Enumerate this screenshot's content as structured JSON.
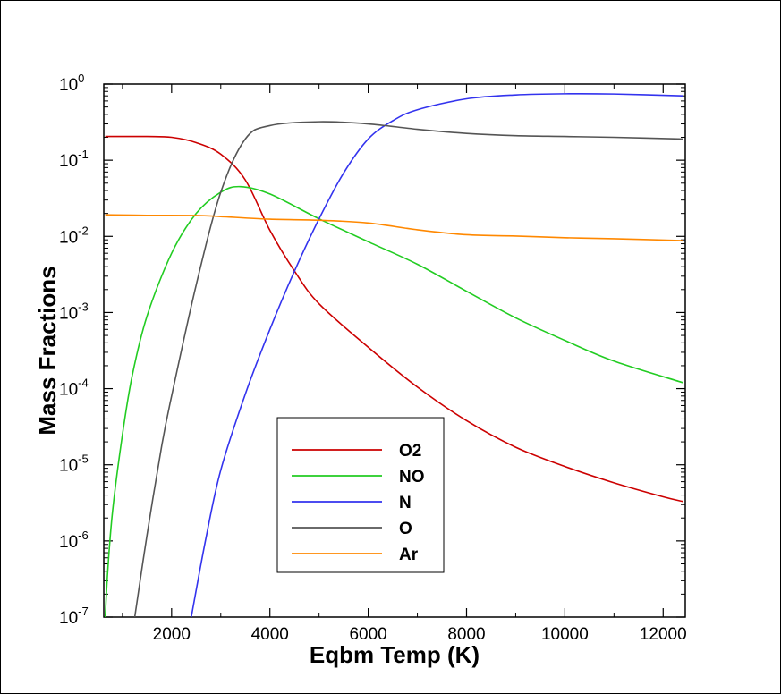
{
  "chart_data": {
    "type": "line",
    "xlabel": "Eqbm Temp (K)",
    "ylabel": "Mass Fractions",
    "xlim": [
      620,
      12450
    ],
    "ylim_log10": [
      -7,
      0
    ],
    "yscale": "log",
    "x_ticks": [
      2000,
      4000,
      6000,
      8000,
      10000,
      12000
    ],
    "x_tick_labels": [
      "2000",
      "4000",
      "6000",
      "8000",
      "10000",
      "12000"
    ],
    "y_ticks": [
      {
        "base": "10",
        "exp": "0",
        "value": 1
      },
      {
        "base": "10",
        "exp": "-1",
        "value": 0.1
      },
      {
        "base": "10",
        "exp": "-2",
        "value": 0.01
      },
      {
        "base": "10",
        "exp": "-3",
        "value": 0.001
      },
      {
        "base": "10",
        "exp": "-4",
        "value": 0.0001
      },
      {
        "base": "10",
        "exp": "-5",
        "value": 1e-05
      },
      {
        "base": "10",
        "exp": "-6",
        "value": 1e-06
      },
      {
        "base": "10",
        "exp": "-7",
        "value": 1e-07
      }
    ],
    "grid": false,
    "legend_position": "lower-center",
    "series": [
      {
        "name": "O2",
        "color": "#cc0000",
        "points": [
          [
            650,
            0.205
          ],
          [
            1500,
            0.205
          ],
          [
            2000,
            0.2
          ],
          [
            2500,
            0.17
          ],
          [
            3000,
            0.12
          ],
          [
            3500,
            0.055
          ],
          [
            4000,
            0.012
          ],
          [
            4500,
            0.0035
          ],
          [
            5000,
            0.0013
          ],
          [
            6000,
            0.00035
          ],
          [
            7000,
            0.000105
          ],
          [
            8000,
            3.8e-05
          ],
          [
            9000,
            1.7e-05
          ],
          [
            10000,
            9.5e-06
          ],
          [
            11000,
            5.8e-06
          ],
          [
            12000,
            3.8e-06
          ],
          [
            12400,
            3.3e-06
          ]
        ]
      },
      {
        "name": "NO",
        "color": "#22cc22",
        "points": [
          [
            650,
            1e-07
          ],
          [
            700,
            4e-07
          ],
          [
            800,
            2.5e-06
          ],
          [
            1000,
            2.5e-05
          ],
          [
            1200,
            0.00015
          ],
          [
            1500,
            0.0009
          ],
          [
            2000,
            0.006
          ],
          [
            2500,
            0.02
          ],
          [
            3000,
            0.038
          ],
          [
            3400,
            0.045
          ],
          [
            4000,
            0.036
          ],
          [
            5000,
            0.017
          ],
          [
            6000,
            0.0085
          ],
          [
            7000,
            0.0043
          ],
          [
            8000,
            0.0019
          ],
          [
            9000,
            0.00085
          ],
          [
            10000,
            0.00043
          ],
          [
            11000,
            0.00023
          ],
          [
            12400,
            0.00012
          ]
        ]
      },
      {
        "name": "N",
        "color": "#3333ee",
        "points": [
          [
            2400,
            1e-07
          ],
          [
            2700,
            1.1e-06
          ],
          [
            3000,
            8.5e-06
          ],
          [
            3500,
            8.5e-05
          ],
          [
            4000,
            0.0006
          ],
          [
            4500,
            0.0035
          ],
          [
            5000,
            0.017
          ],
          [
            5500,
            0.068
          ],
          [
            6000,
            0.19
          ],
          [
            6500,
            0.33
          ],
          [
            7000,
            0.46
          ],
          [
            8000,
            0.64
          ],
          [
            9000,
            0.72
          ],
          [
            10000,
            0.745
          ],
          [
            11000,
            0.74
          ],
          [
            12400,
            0.7
          ]
        ]
      },
      {
        "name": "O",
        "color": "#555555",
        "points": [
          [
            1250,
            1e-07
          ],
          [
            1500,
            1.2e-06
          ],
          [
            1800,
            1.8e-05
          ],
          [
            2000,
            8e-05
          ],
          [
            2500,
            0.0023
          ],
          [
            3000,
            0.038
          ],
          [
            3500,
            0.19
          ],
          [
            4000,
            0.285
          ],
          [
            5000,
            0.32
          ],
          [
            6000,
            0.3
          ],
          [
            7000,
            0.255
          ],
          [
            8000,
            0.225
          ],
          [
            9000,
            0.21
          ],
          [
            10000,
            0.205
          ],
          [
            11000,
            0.2
          ],
          [
            12400,
            0.19
          ]
        ]
      },
      {
        "name": "Ar",
        "color": "#ff8800",
        "points": [
          [
            650,
            0.0192
          ],
          [
            1500,
            0.0189
          ],
          [
            2500,
            0.0188
          ],
          [
            3000,
            0.0182
          ],
          [
            4000,
            0.0168
          ],
          [
            5000,
            0.0163
          ],
          [
            6000,
            0.015
          ],
          [
            7000,
            0.0122
          ],
          [
            8000,
            0.0105
          ],
          [
            9000,
            0.0101
          ],
          [
            10000,
            0.0096
          ],
          [
            11000,
            0.0093
          ],
          [
            12400,
            0.0088
          ]
        ]
      }
    ]
  }
}
